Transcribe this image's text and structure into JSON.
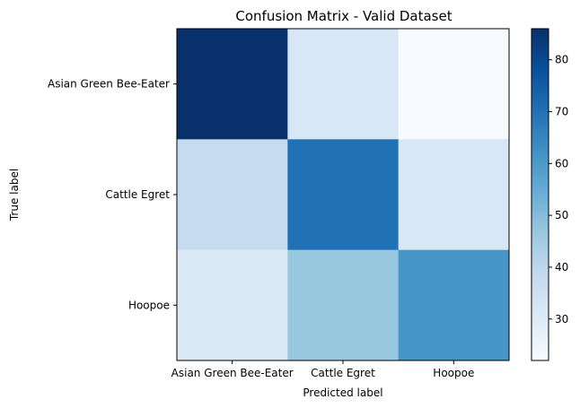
{
  "chart_data": {
    "type": "heatmap",
    "title": "Confusion Matrix - Valid Dataset",
    "xlabel": "Predicted label",
    "ylabel": "True label",
    "x_categories": [
      "Asian Green Bee-Eater",
      "Cattle Egret",
      "Hoopoe"
    ],
    "y_categories": [
      "Asian Green Bee-Eater",
      "Cattle Egret",
      "Hoopoe"
    ],
    "matrix": [
      [
        86,
        32,
        22
      ],
      [
        38,
        70,
        32
      ],
      [
        31,
        47,
        61
      ]
    ],
    "colorbar": {
      "range": [
        22,
        86
      ],
      "ticks": [
        30,
        40,
        50,
        60,
        70,
        80
      ]
    },
    "colormap": [
      "#f7fbff",
      "#deebf7",
      "#c6dbef",
      "#9ecae1",
      "#6baed6",
      "#4292c6",
      "#2171b5",
      "#08519c",
      "#08306b"
    ]
  }
}
